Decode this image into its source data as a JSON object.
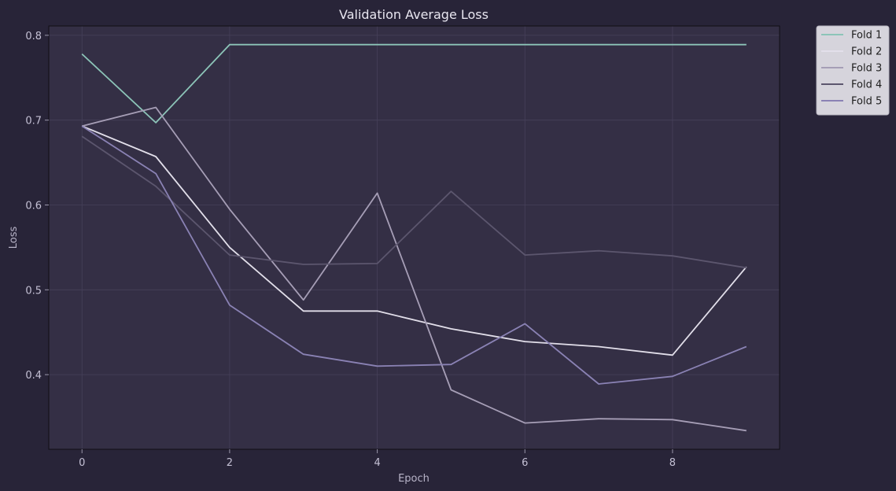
{
  "chart_data": {
    "type": "line",
    "title": "Validation Average Loss",
    "xlabel": "Epoch",
    "ylabel": "Loss",
    "xlim": [
      -0.45,
      9.45
    ],
    "ylim": [
      0.312,
      0.811
    ],
    "xticks": [
      0,
      2,
      4,
      6,
      8
    ],
    "yticks": [
      0.4,
      0.5,
      0.6,
      0.7,
      0.8
    ],
    "ytick_labels": [
      "0.4",
      "0.5",
      "0.6",
      "0.7",
      "0.8"
    ],
    "grid": true,
    "legend_position": "outside-top-right",
    "x": [
      0,
      1,
      2,
      3,
      4,
      5,
      6,
      7,
      8,
      9
    ],
    "series": [
      {
        "name": "Fold 1",
        "color": "#8cc4b8",
        "values": [
          0.778,
          0.697,
          0.789,
          0.789,
          0.789,
          0.789,
          0.789,
          0.789,
          0.789,
          0.789
        ]
      },
      {
        "name": "Fold 2",
        "color": "#e2dfea",
        "values": [
          0.693,
          0.657,
          0.55,
          0.475,
          0.475,
          0.454,
          0.439,
          0.433,
          0.423,
          0.527
        ]
      },
      {
        "name": "Fold 3",
        "color": "#a69eb6",
        "values": [
          0.693,
          0.715,
          0.595,
          0.488,
          0.614,
          0.382,
          0.343,
          0.348,
          0.347,
          0.334
        ]
      },
      {
        "name": "Fold 4",
        "color": "#5c566e",
        "values": [
          0.681,
          0.622,
          0.541,
          0.53,
          0.531,
          0.616,
          0.541,
          0.546,
          0.54,
          0.526
        ]
      },
      {
        "name": "Fold 5",
        "color": "#8a82b4",
        "values": [
          0.693,
          0.637,
          0.482,
          0.424,
          0.41,
          0.412,
          0.46,
          0.389,
          0.398,
          0.433
        ]
      }
    ]
  },
  "colors": {
    "background": "#282438",
    "plot_background": "#342f45",
    "grid": "#46405a",
    "axis": "#0f0e14",
    "legend_background": "#d6d4dc",
    "legend_border": "#b8b6c0"
  }
}
